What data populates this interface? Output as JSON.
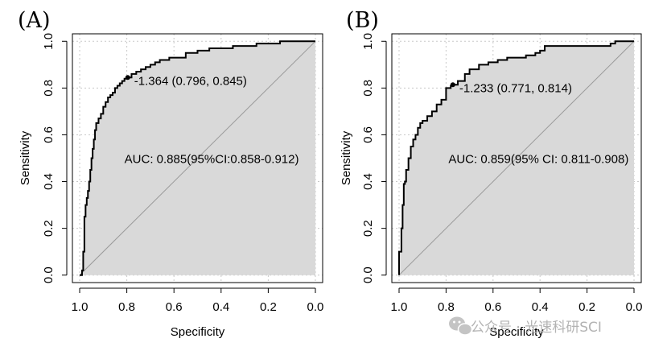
{
  "chart_data": [
    {
      "type": "line",
      "panel_label": "(A)",
      "title": "",
      "xlabel": "Specificity",
      "ylabel": "Sensitivity",
      "xlim": [
        1.0,
        0.0
      ],
      "ylim": [
        0.0,
        1.0
      ],
      "x_reversed": true,
      "grid": true,
      "xticks": [
        1.0,
        0.8,
        0.6,
        0.4,
        0.2,
        0.0
      ],
      "xtick_labels": [
        "1.0",
        "0.8",
        "0.6",
        "0.4",
        "0.2",
        "0.0"
      ],
      "yticks": [
        0.0,
        0.2,
        0.4,
        0.6,
        0.8,
        1.0
      ],
      "ytick_labels": [
        "0.0",
        "0.2",
        "0.4",
        "0.6",
        "0.8",
        "1.0"
      ],
      "series": [
        {
          "name": "ROC",
          "x": [
            1.0,
            0.99,
            0.985,
            0.98,
            0.975,
            0.97,
            0.965,
            0.96,
            0.955,
            0.95,
            0.945,
            0.94,
            0.935,
            0.93,
            0.92,
            0.91,
            0.9,
            0.89,
            0.88,
            0.87,
            0.86,
            0.85,
            0.84,
            0.83,
            0.82,
            0.81,
            0.796,
            0.78,
            0.76,
            0.74,
            0.72,
            0.7,
            0.68,
            0.66,
            0.64,
            0.62,
            0.6,
            0.55,
            0.5,
            0.45,
            0.4,
            0.35,
            0.3,
            0.25,
            0.2,
            0.15,
            0.1,
            0.05,
            0.0
          ],
          "y": [
            0.0,
            0.02,
            0.1,
            0.25,
            0.3,
            0.33,
            0.36,
            0.4,
            0.45,
            0.5,
            0.54,
            0.58,
            0.62,
            0.65,
            0.67,
            0.69,
            0.72,
            0.74,
            0.76,
            0.77,
            0.78,
            0.8,
            0.81,
            0.82,
            0.83,
            0.84,
            0.845,
            0.86,
            0.87,
            0.88,
            0.89,
            0.9,
            0.91,
            0.92,
            0.92,
            0.93,
            0.93,
            0.95,
            0.96,
            0.97,
            0.97,
            0.98,
            0.98,
            0.99,
            0.99,
            1.0,
            1.0,
            1.0,
            1.0
          ]
        }
      ],
      "reference_line": {
        "from": [
          1.0,
          0.0
        ],
        "to": [
          0.0,
          1.0
        ]
      },
      "threshold_point": {
        "x": 0.796,
        "y": 0.845,
        "label": "-1.364 (0.796, 0.845)"
      },
      "auc_text": "AUC: 0.885(95%CI:0.858-0.912)",
      "auc_anchor": {
        "x": 0.81,
        "y": 0.48
      }
    },
    {
      "type": "line",
      "panel_label": "(B)",
      "title": "",
      "xlabel": "Specificity",
      "ylabel": "Sensitivity",
      "xlim": [
        1.0,
        0.0
      ],
      "ylim": [
        0.0,
        1.0
      ],
      "x_reversed": true,
      "grid": true,
      "xticks": [
        1.0,
        0.8,
        0.6,
        0.4,
        0.2,
        0.0
      ],
      "xtick_labels": [
        "1.0",
        "0.8",
        "0.6",
        "0.4",
        "0.2",
        "0.0"
      ],
      "yticks": [
        0.0,
        0.2,
        0.4,
        0.6,
        0.8,
        1.0
      ],
      "ytick_labels": [
        "0.0",
        "0.2",
        "0.4",
        "0.6",
        "0.8",
        "1.0"
      ],
      "series": [
        {
          "name": "ROC",
          "x": [
            1.0,
            1.0,
            0.99,
            0.985,
            0.98,
            0.975,
            0.97,
            0.96,
            0.95,
            0.94,
            0.93,
            0.92,
            0.91,
            0.9,
            0.88,
            0.86,
            0.84,
            0.82,
            0.8,
            0.78,
            0.771,
            0.75,
            0.72,
            0.7,
            0.66,
            0.62,
            0.58,
            0.54,
            0.5,
            0.46,
            0.42,
            0.4,
            0.38,
            0.3,
            0.2,
            0.1,
            0.08,
            0.0
          ],
          "y": [
            0.0,
            0.1,
            0.2,
            0.3,
            0.39,
            0.4,
            0.45,
            0.5,
            0.55,
            0.58,
            0.6,
            0.63,
            0.65,
            0.66,
            0.68,
            0.7,
            0.73,
            0.75,
            0.8,
            0.81,
            0.814,
            0.83,
            0.86,
            0.88,
            0.9,
            0.91,
            0.92,
            0.93,
            0.93,
            0.94,
            0.95,
            0.96,
            0.98,
            0.98,
            0.98,
            0.99,
            1.0,
            1.0
          ]
        }
      ],
      "reference_line": {
        "from": [
          1.0,
          0.0
        ],
        "to": [
          0.0,
          1.0
        ]
      },
      "threshold_point": {
        "x": 0.771,
        "y": 0.814,
        "label": "-1.233 (0.771, 0.814)"
      },
      "auc_text": "AUC: 0.859(95% CI: 0.811-0.908)",
      "auc_anchor": {
        "x": 0.79,
        "y": 0.48
      }
    }
  ],
  "watermark": {
    "text": "公众号 · 光速科研SCI",
    "icon": "wechat-icon"
  }
}
